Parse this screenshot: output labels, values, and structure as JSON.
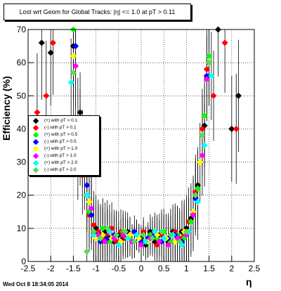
{
  "chart_data": {
    "type": "scatter",
    "title": "Lost wrt Geom for Global Tracks: |η| <= 1.0 at pT > 0.11",
    "xlabel": "η",
    "ylabel": "Efficiency (%)",
    "xlim": [
      -2.5,
      2.5
    ],
    "ylim": [
      0,
      70
    ],
    "x_ticks": [
      "-2.5",
      "-2",
      "-1.5",
      "-1",
      "-0.5",
      "0",
      "0.5",
      "1",
      "1.5",
      "2",
      "2.5"
    ],
    "y_ticks": [
      "0",
      "10",
      "20",
      "30",
      "40",
      "50",
      "60",
      "70"
    ],
    "grid": true,
    "legend_position": "left-middle",
    "series": [
      {
        "name": "(+) with pT > 0.1",
        "color": "#000000",
        "x": [
          -2.2,
          -2.0,
          -1.5,
          -1.35,
          -1.2,
          -1.1,
          -1.0,
          -0.9,
          -0.8,
          -0.7,
          -0.6,
          -0.5,
          -0.4,
          -0.3,
          -0.2,
          -0.1,
          0.0,
          0.1,
          0.2,
          0.3,
          0.4,
          0.5,
          0.6,
          0.7,
          0.8,
          0.9,
          1.0,
          1.1,
          1.25,
          1.4,
          1.5,
          1.7,
          2.0,
          2.15
        ],
        "y": [
          66,
          63,
          65,
          45,
          27,
          16,
          10,
          8,
          9,
          7,
          6,
          8,
          7,
          9,
          6,
          8,
          7,
          5,
          9,
          6,
          8,
          7,
          6,
          9,
          8,
          9,
          10,
          13,
          23,
          41,
          60,
          70,
          40,
          50
        ]
      },
      {
        "name": "(-) with pT > 0.1",
        "color": "#ff0000",
        "x": [
          -2.3,
          -2.1,
          -1.95,
          -1.45,
          -1.3,
          -1.15,
          -1.05,
          -0.95,
          -0.85,
          -0.75,
          -0.65,
          -0.55,
          -0.45,
          -0.35,
          -0.25,
          -0.15,
          -0.05,
          0.05,
          0.15,
          0.25,
          0.35,
          0.45,
          0.55,
          0.65,
          0.75,
          0.85,
          0.95,
          1.05,
          1.2,
          1.35,
          1.45,
          1.6,
          1.85,
          2.1
        ],
        "y": [
          45,
          50,
          66,
          40,
          26,
          14,
          11,
          9,
          7,
          8,
          10,
          6,
          9,
          7,
          8,
          6,
          7,
          9,
          6,
          8,
          5,
          8,
          7,
          6,
          9,
          7,
          8,
          12,
          21,
          40,
          58,
          50,
          66,
          40
        ]
      },
      {
        "name": "(+) with pT > 0.5",
        "color": "#00ff00",
        "x": [
          -1.5,
          -1.4,
          -1.25,
          -1.15,
          -1.05,
          -0.95,
          -0.85,
          -0.7,
          -0.55,
          -0.4,
          -0.25,
          -0.1,
          0.05,
          0.2,
          0.35,
          0.5,
          0.65,
          0.8,
          0.95,
          1.1,
          1.25,
          1.4,
          1.5
        ],
        "y": [
          70,
          43,
          27,
          15,
          9,
          7,
          10,
          6,
          8,
          9,
          7,
          8,
          6,
          8,
          7,
          9,
          6,
          8,
          7,
          12,
          22,
          44,
          62
        ]
      },
      {
        "name": "(-) with pT > 0.5",
        "color": "#0000ff",
        "x": [
          -1.45,
          -1.35,
          -1.2,
          -1.1,
          -1.0,
          -0.9,
          -0.75,
          -0.6,
          -0.45,
          -0.3,
          -0.15,
          0.0,
          0.15,
          0.3,
          0.45,
          0.6,
          0.75,
          0.9,
          1.05,
          1.2,
          1.35,
          1.45
        ],
        "y": [
          65,
          40,
          23,
          14,
          8,
          6,
          7,
          8,
          6,
          7,
          9,
          6,
          7,
          8,
          6,
          7,
          8,
          6,
          9,
          19,
          38,
          56
        ]
      },
      {
        "name": "(+) with pT > 1.0",
        "color": "#ffff00",
        "x": [
          -1.5,
          -1.3,
          -1.15,
          -1.0,
          -0.85,
          -0.65,
          -0.45,
          -0.25,
          -0.05,
          0.15,
          0.35,
          0.55,
          0.75,
          0.95,
          1.15,
          1.3,
          1.5
        ],
        "y": [
          62,
          34,
          18,
          7,
          8,
          7,
          6,
          8,
          7,
          6,
          8,
          7,
          6,
          9,
          15,
          30,
          60
        ]
      },
      {
        "name": "(-) with pT > 1.0",
        "color": "#ff00ff",
        "x": [
          -1.45,
          -1.25,
          -1.1,
          -0.95,
          -0.8,
          -0.6,
          -0.4,
          -0.2,
          0.0,
          0.2,
          0.4,
          0.6,
          0.8,
          1.0,
          1.15,
          1.35,
          1.45
        ],
        "y": [
          59,
          30,
          16,
          8,
          6,
          7,
          8,
          6,
          5,
          7,
          6,
          5,
          7,
          8,
          14,
          32,
          55
        ]
      },
      {
        "name": "(+) with pT > 2.0",
        "color": "#00ffff",
        "x": [
          -1.55,
          -1.4,
          -1.2,
          -1.05,
          -0.9,
          -0.7,
          -0.5,
          -0.3,
          -0.1,
          0.1,
          0.3,
          0.5,
          0.7,
          0.9,
          1.05,
          1.25,
          1.4,
          1.55
        ],
        "y": [
          54,
          31,
          20,
          8,
          7,
          9,
          5,
          7,
          8,
          6,
          9,
          7,
          8,
          5,
          9,
          18,
          35,
          56
        ]
      },
      {
        "name": "(-) with pT > 2.0",
        "color": "#55dd55",
        "x": [
          -1.5,
          -1.35,
          -1.2,
          -1.05,
          -0.9,
          -0.75,
          -0.55,
          -0.35,
          -0.15,
          0.05,
          0.25,
          0.45,
          0.65,
          0.85,
          1.0,
          1.2,
          1.35,
          1.5
        ],
        "y": [
          57,
          35,
          3,
          9,
          7,
          10,
          8,
          9,
          6,
          8,
          7,
          9,
          8,
          6,
          9,
          20,
          38,
          60
        ]
      }
    ]
  },
  "title": "Lost wrt Geom for Global Tracks: |η| <= 1.0 at pT > 0.11",
  "footer": "Wed Oct  8 18:34:05 2014"
}
